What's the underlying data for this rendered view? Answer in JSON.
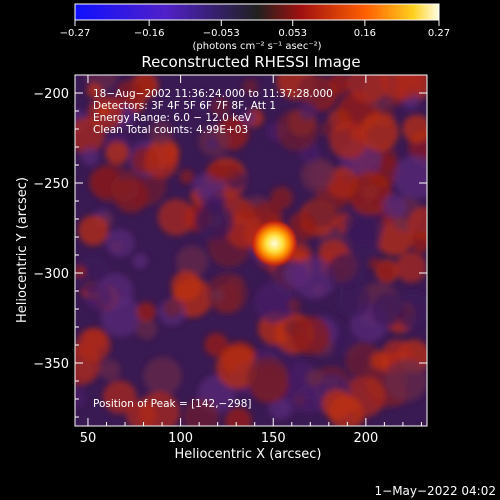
{
  "colorbar": {
    "min": -0.27,
    "max": 0.27,
    "ticks": [
      -0.27,
      -0.16,
      -0.053,
      0.053,
      0.16,
      0.27
    ],
    "tick_labels": [
      "−0.27",
      "−0.16",
      "−0.053",
      "0.053",
      "0.16",
      "0.27"
    ],
    "unit_text": "(photons cm⁻² s⁻¹ asec⁻²)"
  },
  "chart_data": {
    "type": "heatmap",
    "title": "Reconstructed RHESSI Image",
    "xlabel": "Heliocentric X (arcsec)",
    "ylabel": "Heliocentric Y (arcsec)",
    "xlim": [
      43,
      233
    ],
    "ylim": [
      -385,
      -190
    ],
    "xticks": [
      50,
      100,
      150,
      200
    ],
    "yticks": [
      -200,
      -250,
      -300,
      -350
    ],
    "xtick_labels": [
      "50",
      "100",
      "150",
      "200"
    ],
    "ytick_labels": [
      "−200",
      "−250",
      "−300",
      "−350"
    ],
    "annotations": [
      "18−Aug−2002 11:36:24.000 to 11:37:28.000",
      "Detectors: 3F 4F 5F 6F 7F 8F, Att 1",
      "Energy Range: 6.0 − 12.0 keV",
      "Clean     Total counts: 4.99E+03"
    ],
    "peak_label": "Position of Peak = [142,−298]",
    "peak": {
      "x": 142,
      "y": -298,
      "value": 0.27
    },
    "footer_date": "1−May−2022 04:02"
  }
}
